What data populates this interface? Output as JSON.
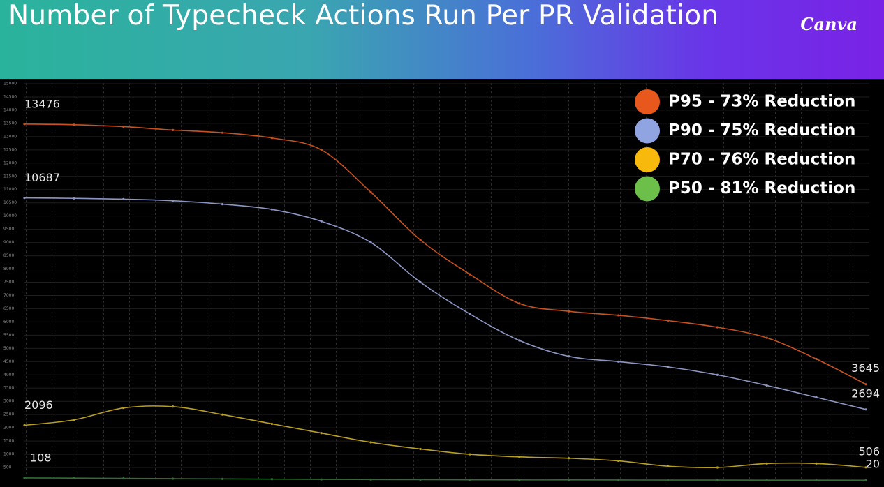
{
  "chart_data": {
    "type": "line",
    "title": "Number of Typecheck Actions Run Per PR Validation",
    "logo": "Canva",
    "categories": [
      null,
      null,
      null,
      null,
      null,
      null,
      null,
      null,
      null,
      null,
      null,
      null,
      null,
      null,
      null,
      null,
      null,
      null
    ],
    "series": [
      {
        "name": "P95 - 73% Reduction",
        "color": "#e8581c",
        "line_color": "#c8521f",
        "values": [
          13476,
          13450,
          13380,
          13250,
          13150,
          12950,
          12500,
          10900,
          9100,
          7800,
          6700,
          6400,
          6250,
          6050,
          5800,
          5400,
          4600,
          3645
        ]
      },
      {
        "name": "P90 - 75% Reduction",
        "color": "#8fa4e0",
        "line_color": "#8c96c4",
        "values": [
          10687,
          10670,
          10640,
          10580,
          10450,
          10250,
          9800,
          9000,
          7500,
          6300,
          5300,
          4700,
          4500,
          4300,
          4000,
          3600,
          3150,
          2694
        ]
      },
      {
        "name": "P70 - 76% Reduction",
        "color": "#f6b90c",
        "line_color": "#b89e22",
        "values": [
          2096,
          2300,
          2750,
          2800,
          2500,
          2150,
          1800,
          1450,
          1200,
          1000,
          900,
          850,
          750,
          550,
          500,
          650,
          650,
          506
        ]
      },
      {
        "name": "P50 - 81% Reduction",
        "color": "#6cc04a",
        "line_color": "#2e6e32",
        "values": [
          108,
          100,
          90,
          80,
          70,
          60,
          50,
          45,
          40,
          35,
          30,
          30,
          28,
          25,
          25,
          22,
          21,
          20
        ]
      }
    ],
    "ylim": [
      0,
      15000
    ],
    "yticks": [
      500,
      1000,
      1500,
      2000,
      2500,
      3000,
      3500,
      4000,
      4500,
      5000,
      5500,
      6000,
      6500,
      7000,
      7500,
      8000,
      8500,
      9000,
      9500,
      10000,
      10500,
      11000,
      11500,
      12000,
      12500,
      13000,
      13500,
      14000,
      14500,
      15000
    ],
    "legend": "upper right"
  }
}
